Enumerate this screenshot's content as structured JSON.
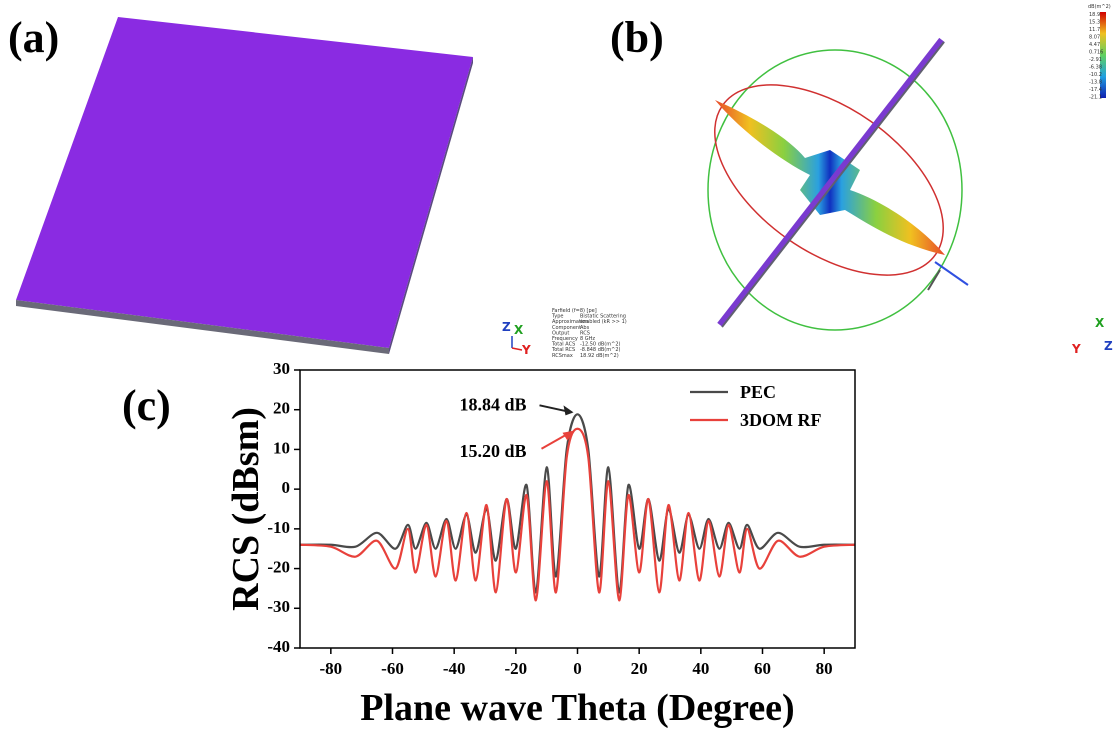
{
  "panel_a": {
    "label": "(a)",
    "axes": [
      "Z",
      "X",
      "Y"
    ],
    "info": [
      [
        "Farfield (f=8) [pe]",
        ""
      ],
      [
        "Type",
        "Bistatic Scattering"
      ],
      [
        "Approximation",
        "enabled (kR >> 1)"
      ],
      [
        "Component",
        "Abs"
      ],
      [
        "Output",
        "RCS"
      ],
      [
        "Frequency",
        "8 GHz"
      ],
      [
        "Total ACS",
        "-12.50 dB(m^2)"
      ],
      [
        "Total RCS",
        "-8.848 dB(m^2)"
      ],
      [
        "RCSmax",
        "18.92 dB(m^2)"
      ]
    ]
  },
  "panel_b": {
    "label": "(b)",
    "axes": [
      "X",
      "Y",
      "Z"
    ],
    "colorbar_unit": "dB(m^2)",
    "colorbar_labels": [
      "18.9",
      "15.3",
      "11.7",
      "8.07",
      "4.47",
      "0.716",
      "-2.91",
      "-6.38",
      "-10.2",
      "-13.8",
      "-17.4",
      "-21.1"
    ]
  },
  "chart_data": {
    "type": "line",
    "panel_label": "(c)",
    "xlabel": "Plane wave Theta (Degree)",
    "ylabel": "RCS (dBsm)",
    "x": [
      -90,
      -80,
      -72,
      -65,
      -59,
      -55,
      -52.5,
      -49,
      -46,
      -42.5,
      -39.5,
      -36,
      -33,
      -29.5,
      -26.5,
      -23,
      -20,
      -16.5,
      -13.5,
      -10,
      -7,
      -3.5,
      0,
      3.5,
      7,
      10,
      13.5,
      16.5,
      20,
      23,
      26.5,
      29.5,
      33,
      36,
      39.5,
      42.5,
      46,
      49,
      52.5,
      55,
      59,
      65,
      72,
      80,
      90
    ],
    "series": [
      {
        "name": "PEC",
        "color": "#4a4a4a",
        "values": [
          -14,
          -14,
          -14.5,
          -11,
          -15,
          -9,
          -15,
          -8.5,
          -15,
          -7.5,
          -15,
          -6.5,
          -16,
          -5,
          -18,
          -2.5,
          -15,
          1,
          -26,
          5.5,
          -22,
          10,
          18.84,
          10,
          -22,
          5.5,
          -26,
          1,
          -15,
          -2.5,
          -18,
          -5,
          -16,
          -6.5,
          -15,
          -7.5,
          -15,
          -8.5,
          -15,
          -9,
          -15,
          -11,
          -14.5,
          -14,
          -14
        ]
      },
      {
        "name": "3DOM RF",
        "color": "#e8413b",
        "values": [
          -14,
          -14.5,
          -17,
          -13,
          -20,
          -10,
          -21,
          -9,
          -22,
          -8,
          -23,
          -6,
          -23,
          -4,
          -26,
          -2.5,
          -21,
          -1.5,
          -28,
          2,
          -26,
          8,
          15.2,
          8,
          -26,
          2,
          -28,
          -1.5,
          -21,
          -2.5,
          -26,
          -4,
          -23,
          -6,
          -23,
          -8,
          -22,
          -9,
          -21,
          -10,
          -20,
          -13,
          -17,
          -14.5,
          -14
        ]
      }
    ],
    "annotations": [
      "18.84 dB",
      "15.20 dB"
    ],
    "xlim": [
      -90,
      90
    ],
    "xticks": [
      -80,
      -60,
      -40,
      -20,
      0,
      20,
      40,
      60,
      80
    ],
    "ylim": [
      -40,
      30
    ],
    "yticks": [
      -40,
      -30,
      -20,
      -10,
      0,
      10,
      20,
      30
    ],
    "legend": "upper right"
  }
}
